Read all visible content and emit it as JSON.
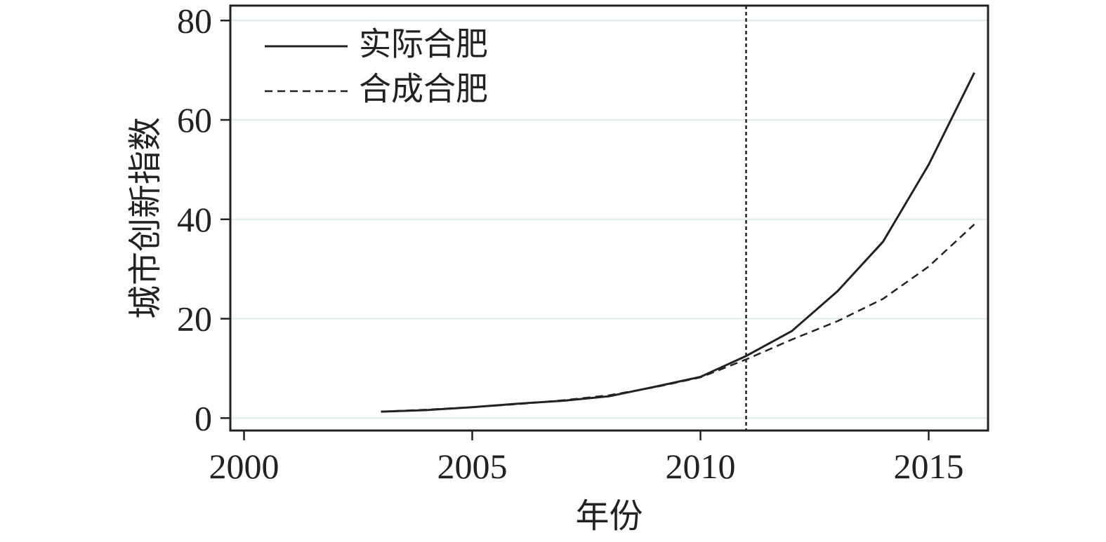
{
  "chart_data": {
    "type": "line",
    "xlabel": "年份",
    "ylabel": "城市创新指数",
    "xlim": [
      1999.7,
      2016.3
    ],
    "ylim": [
      -2.5,
      83
    ],
    "xticks": [
      2000,
      2005,
      2010,
      2015
    ],
    "yticks": [
      0,
      20,
      40,
      60,
      80
    ],
    "grid": "horizontal",
    "legend_position": "top-left",
    "vline": {
      "x": 2011,
      "style": "dotted"
    },
    "series": [
      {
        "name": "实际合肥",
        "style": "solid",
        "x": [
          2003,
          2004,
          2005,
          2006,
          2007,
          2008,
          2009,
          2010,
          2011,
          2012,
          2013,
          2014,
          2015,
          2016
        ],
        "values": [
          1.3,
          1.6,
          2.2,
          2.9,
          3.5,
          4.4,
          6.3,
          8.3,
          12.5,
          17.5,
          25.5,
          35.5,
          51.0,
          69.5
        ]
      },
      {
        "name": "合成合肥",
        "style": "dashed",
        "x": [
          2003,
          2004,
          2005,
          2006,
          2007,
          2008,
          2009,
          2010,
          2011,
          2012,
          2013,
          2014,
          2015,
          2016
        ],
        "values": [
          1.3,
          1.7,
          2.2,
          2.8,
          3.6,
          4.6,
          6.2,
          8.2,
          11.8,
          15.8,
          19.5,
          24.0,
          30.5,
          39.0
        ]
      }
    ]
  }
}
